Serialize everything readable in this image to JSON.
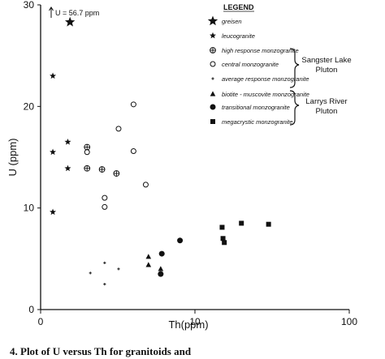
{
  "chart_data": {
    "type": "scatter",
    "xlabel": "Th(ppm)",
    "ylabel": "U (ppm)",
    "xscale": "log",
    "xlim": [
      1,
      100
    ],
    "ylim": [
      0,
      30
    ],
    "x_ticks": [
      {
        "value": 1,
        "label": "0"
      },
      {
        "value": 10,
        "label": "10"
      },
      {
        "value": 100,
        "label": "100"
      }
    ],
    "y_ticks": [
      {
        "value": 0,
        "label": "0"
      },
      {
        "value": 10,
        "label": "10"
      },
      {
        "value": 20,
        "label": "20"
      },
      {
        "value": 30,
        "label": "30"
      }
    ],
    "grid": false,
    "legend_title": "LEGEND",
    "legend_position": "top-right",
    "annotation": "U = 56.7 ppm",
    "series": [
      {
        "name": "greisen",
        "marker": "star-large",
        "points": [
          [
            1.55,
            28.3
          ]
        ]
      },
      {
        "name": "leucogranite",
        "marker": "star-small",
        "points": [
          [
            1.2,
            23.0
          ],
          [
            1.2,
            15.5
          ],
          [
            1.2,
            9.6
          ],
          [
            1.5,
            16.5
          ],
          [
            1.5,
            13.9
          ]
        ]
      },
      {
        "name": "high response monzogranite",
        "marker": "circle-plus",
        "points": [
          [
            2.0,
            16.0
          ],
          [
            2.0,
            13.9
          ],
          [
            2.5,
            13.8
          ],
          [
            3.1,
            13.4
          ]
        ]
      },
      {
        "name": "central monzogranite",
        "marker": "circle-open",
        "points": [
          [
            2.0,
            15.5
          ],
          [
            2.6,
            11.0
          ],
          [
            2.6,
            10.1
          ],
          [
            3.2,
            17.8
          ],
          [
            4.0,
            20.2
          ],
          [
            4.0,
            15.6
          ],
          [
            4.8,
            12.3
          ]
        ]
      },
      {
        "name": "average response monzogranite",
        "marker": "plus-small",
        "points": [
          [
            2.1,
            3.6
          ],
          [
            2.6,
            4.6
          ],
          [
            2.6,
            2.5
          ],
          [
            3.2,
            4.0
          ]
        ]
      },
      {
        "name": "biotite - muscovite monzogranite",
        "marker": "triangle",
        "points": [
          [
            5.0,
            5.2
          ],
          [
            5.0,
            4.4
          ],
          [
            6.0,
            4.0
          ]
        ]
      },
      {
        "name": "transitional monzogranite",
        "marker": "circle-filled",
        "points": [
          [
            6.0,
            3.5
          ],
          [
            6.1,
            5.5
          ],
          [
            8.0,
            6.8
          ]
        ]
      },
      {
        "name": "megacrystic monzogranite",
        "marker": "square-filled",
        "points": [
          [
            15.0,
            8.1
          ],
          [
            15.2,
            7.0
          ],
          [
            15.5,
            6.6
          ],
          [
            20.0,
            8.5
          ],
          [
            30.0,
            8.4
          ]
        ]
      }
    ],
    "groups": [
      {
        "lines": [
          "Sangster Lake",
          "Pluton"
        ]
      },
      {
        "lines": [
          "Larrys River",
          "Pluton"
        ]
      }
    ]
  },
  "caption": "4. Plot of U versus Th for granitoids and"
}
